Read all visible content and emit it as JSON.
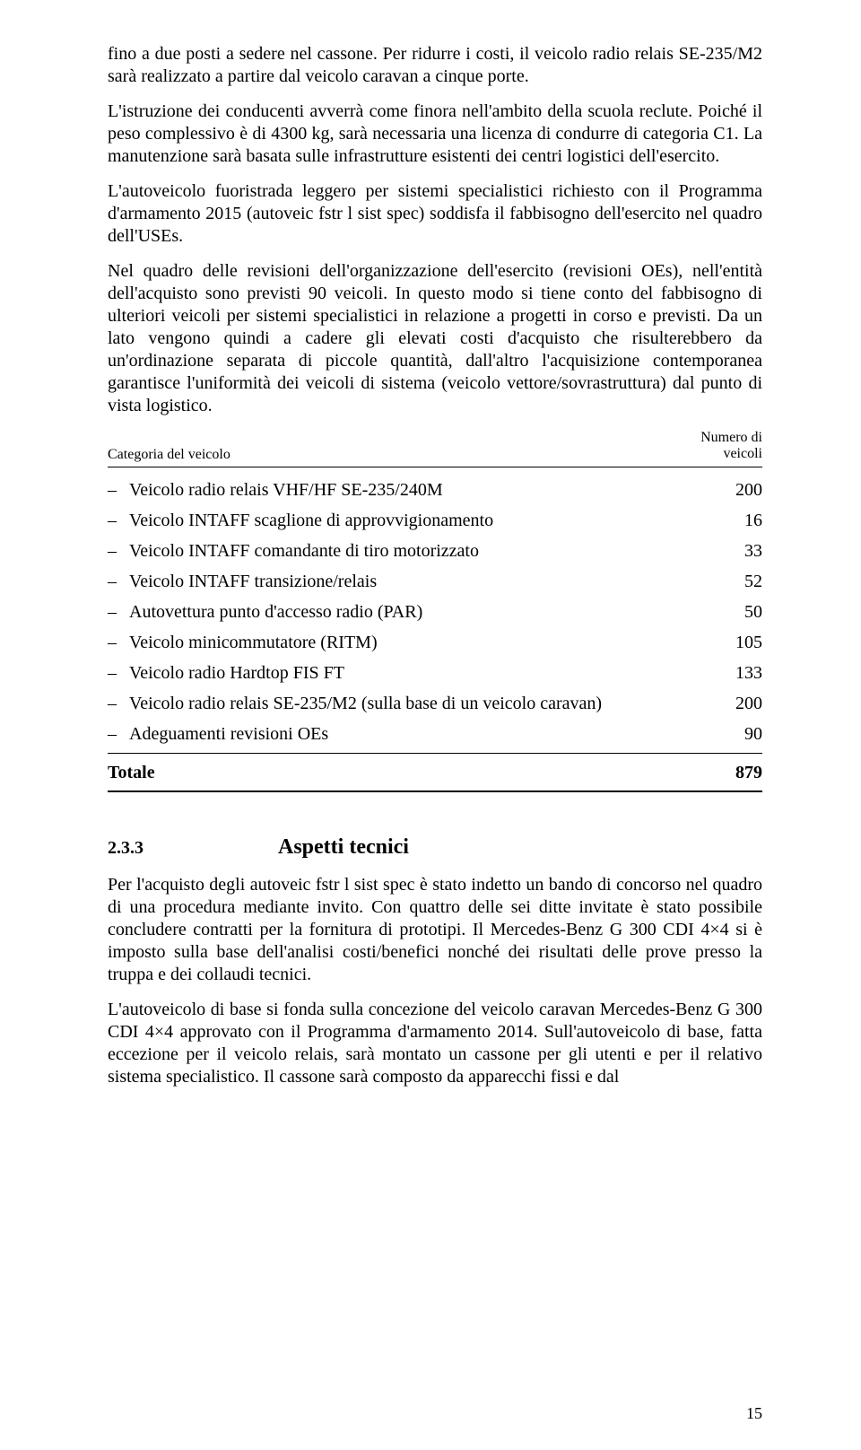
{
  "paragraphs": {
    "p1": "fino a due posti a sedere nel cassone. Per ridurre i costi, il veicolo radio relais SE-235/M2 sarà realizzato a partire dal veicolo caravan a cinque porte.",
    "p2": "L'istruzione dei conducenti avverrà come finora nell'ambito della scuola reclute. Poiché il peso complessivo è di 4300 kg, sarà necessaria una licenza di condurre di categoria C1. La manutenzione sarà basata sulle infrastrutture esistenti dei centri logistici dell'esercito.",
    "p3": "L'autoveicolo fuoristrada leggero per sistemi specialistici richiesto con il Programma d'armamento 2015 (autoveic fstr l sist spec) soddisfa il fabbisogno dell'esercito nel quadro dell'USEs.",
    "p4": "Nel quadro delle revisioni dell'organizzazione dell'esercito (revisioni OEs), nell'entità dell'acquisto sono previsti 90 veicoli. In questo modo si tiene conto del fabbisogno di ulteriori veicoli per sistemi specialistici in relazione a progetti in corso e previsti. Da un lato vengono quindi a cadere gli elevati costi d'acquisto che risulterebbero da un'ordinazione separata di piccole quantità, dall'altro l'acquisizione contemporanea garantisce l'uniformità dei veicoli di sistema (veicolo vettore/sovrastruttura) dal punto di vista logistico.",
    "p5": "Per l'acquisto degli autoveic fstr l sist spec è stato indetto un bando di concorso nel quadro di una procedura mediante invito. Con quattro delle sei ditte invitate è stato possibile concludere contratti per la fornitura di prototipi. Il Mercedes-Benz G 300 CDI 4×4 si è imposto sulla base dell'analisi costi/benefici nonché dei risultati delle prove presso la truppa e dei collaudi tecnici.",
    "p6": "L'autoveicolo di base si fonda sulla concezione del veicolo caravan Mercedes-Benz G 300 CDI 4×4 approvato con il Programma d'armamento 2014. Sull'autoveicolo di base, fatta eccezione per il veicolo relais, sarà montato un cassone per gli utenti e per il relativo sistema specialistico. Il cassone sarà composto da apparecchi fissi e dal"
  },
  "table": {
    "header_left": "Categoria del veicolo",
    "header_right_l1": "Numero di",
    "header_right_l2": "veicoli",
    "rows": [
      {
        "label": "Veicolo radio relais VHF/HF SE-235/240M",
        "value": "200"
      },
      {
        "label": "Veicolo INTAFF scaglione di approvvigionamento",
        "value": "16"
      },
      {
        "label": "Veicolo INTAFF comandante di tiro motorizzato",
        "value": "33"
      },
      {
        "label": "Veicolo INTAFF transizione/relais",
        "value": "52"
      },
      {
        "label": "Autovettura punto d'accesso radio (PAR)",
        "value": "50"
      },
      {
        "label": "Veicolo minicommutatore (RITM)",
        "value": "105"
      },
      {
        "label": "Veicolo radio Hardtop FIS FT",
        "value": "133"
      },
      {
        "label": "Veicolo radio relais SE-235/M2 (sulla base di un veicolo caravan)",
        "value": "200"
      },
      {
        "label": "Adeguamenti revisioni OEs",
        "value": "90"
      }
    ],
    "total_label": "Totale",
    "total_value": "879"
  },
  "section": {
    "number": "2.3.3",
    "title": "Aspetti tecnici"
  },
  "page_number": "15",
  "dash": "–"
}
